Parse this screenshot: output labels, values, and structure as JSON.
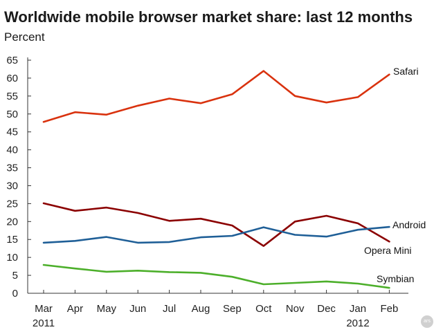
{
  "chart_data": {
    "type": "line",
    "title": "Worldwide mobile browser market share: last 12 months",
    "subtitle": "Percent",
    "categories": [
      "Mar",
      "Apr",
      "May",
      "Jun",
      "Jul",
      "Aug",
      "Sep",
      "Oct",
      "Nov",
      "Dec",
      "Jan",
      "Feb"
    ],
    "year_labels": [
      {
        "index": 0,
        "label": "2011"
      },
      {
        "index": 10,
        "label": "2012"
      }
    ],
    "ylim": [
      0,
      65
    ],
    "yticks": [
      0,
      5,
      10,
      15,
      20,
      25,
      30,
      35,
      40,
      45,
      50,
      55,
      60,
      65
    ],
    "grid": false,
    "series": [
      {
        "name": "Safari",
        "color": "#d9320e",
        "values": [
          47.8,
          50.5,
          49.8,
          52.3,
          54.3,
          53.0,
          55.5,
          62.0,
          55.0,
          53.2,
          54.7,
          61.0
        ]
      },
      {
        "name": "Opera Mini",
        "color": "#8b0000",
        "values": [
          25.1,
          23.0,
          23.9,
          22.4,
          20.2,
          20.8,
          18.9,
          13.2,
          20.0,
          21.6,
          19.5,
          14.4
        ]
      },
      {
        "name": "Android",
        "color": "#1f5f97",
        "values": [
          14.1,
          14.6,
          15.7,
          14.1,
          14.3,
          15.6,
          16.0,
          18.4,
          16.3,
          15.8,
          17.7,
          18.5
        ]
      },
      {
        "name": "Symbian",
        "color": "#4caf2a",
        "values": [
          7.9,
          6.9,
          6.0,
          6.3,
          5.9,
          5.7,
          4.6,
          2.5,
          2.9,
          3.3,
          2.7,
          1.5
        ]
      }
    ],
    "series_labels": [
      {
        "series": "Safari",
        "text": "Safari"
      },
      {
        "series": "Android",
        "text": "Android"
      },
      {
        "series": "Opera Mini",
        "text": "Opera Mini"
      },
      {
        "series": "Symbian",
        "text": "Symbian"
      }
    ]
  },
  "logo_text": "ars"
}
